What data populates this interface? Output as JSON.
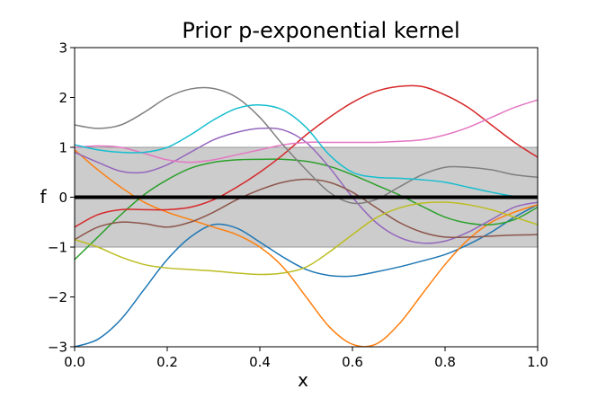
{
  "chart_data": {
    "type": "line",
    "title": "Prior p-exponential kernel",
    "xlabel": "x",
    "ylabel": "f",
    "xlim": [
      0.0,
      1.0
    ],
    "ylim": [
      -3,
      3
    ],
    "xticks": [
      0.0,
      0.2,
      0.4,
      0.6,
      0.8,
      1.0
    ],
    "xtick_labels": [
      "0.0",
      "0.2",
      "0.4",
      "0.6",
      "0.8",
      "1.0"
    ],
    "yticks": [
      -3,
      -2,
      -1,
      0,
      1,
      2,
      3
    ],
    "ytick_labels": [
      "−3",
      "−2",
      "−1",
      "0",
      "1",
      "2",
      "3"
    ],
    "band": {
      "lower": -1,
      "upper": 1,
      "color": "#cccccc"
    },
    "mean": {
      "x": [
        0.0,
        1.0
      ],
      "y": [
        0,
        0
      ],
      "color": "#000000"
    },
    "grid": false,
    "legend": "none",
    "series": [
      {
        "color": "#1f77b4",
        "x": [
          0.0,
          0.05,
          0.1,
          0.15,
          0.2,
          0.25,
          0.3,
          0.35,
          0.4,
          0.45,
          0.5,
          0.55,
          0.6,
          0.65,
          0.7,
          0.75,
          0.8,
          0.85,
          0.9,
          0.95,
          1.0
        ],
        "y": [
          -3.0,
          -2.85,
          -2.45,
          -1.85,
          -1.25,
          -0.8,
          -0.55,
          -0.62,
          -0.9,
          -1.2,
          -1.45,
          -1.57,
          -1.58,
          -1.5,
          -1.4,
          -1.28,
          -1.15,
          -0.95,
          -0.7,
          -0.4,
          -0.15
        ]
      },
      {
        "color": "#ff7f0e",
        "x": [
          0.0,
          0.05,
          0.1,
          0.15,
          0.2,
          0.25,
          0.3,
          0.35,
          0.4,
          0.45,
          0.5,
          0.55,
          0.6,
          0.65,
          0.7,
          0.75,
          0.8,
          0.85,
          0.9,
          0.95,
          1.0
        ],
        "y": [
          0.95,
          0.55,
          0.2,
          -0.1,
          -0.3,
          -0.45,
          -0.6,
          -0.75,
          -1.0,
          -1.4,
          -2.0,
          -2.6,
          -2.95,
          -2.95,
          -2.55,
          -1.95,
          -1.35,
          -0.85,
          -0.5,
          -0.3,
          -0.15
        ]
      },
      {
        "color": "#2ca02c",
        "x": [
          0.0,
          0.05,
          0.1,
          0.15,
          0.2,
          0.25,
          0.3,
          0.35,
          0.4,
          0.45,
          0.5,
          0.55,
          0.6,
          0.65,
          0.7,
          0.75,
          0.8,
          0.85,
          0.9,
          0.95,
          1.0
        ],
        "y": [
          -1.25,
          -0.8,
          -0.35,
          0.05,
          0.35,
          0.58,
          0.7,
          0.75,
          0.76,
          0.76,
          0.72,
          0.62,
          0.45,
          0.25,
          0.05,
          -0.18,
          -0.4,
          -0.52,
          -0.55,
          -0.45,
          -0.2
        ]
      },
      {
        "color": "#d62728",
        "x": [
          0.0,
          0.05,
          0.1,
          0.15,
          0.2,
          0.25,
          0.3,
          0.35,
          0.4,
          0.45,
          0.5,
          0.55,
          0.6,
          0.65,
          0.7,
          0.75,
          0.8,
          0.85,
          0.9,
          0.95,
          1.0
        ],
        "y": [
          -0.6,
          -0.35,
          -0.25,
          -0.25,
          -0.25,
          -0.2,
          -0.05,
          0.2,
          0.5,
          0.85,
          1.25,
          1.6,
          1.9,
          2.12,
          2.22,
          2.22,
          2.05,
          1.8,
          1.45,
          1.1,
          0.8
        ]
      },
      {
        "color": "#9467bd",
        "x": [
          0.0,
          0.05,
          0.1,
          0.15,
          0.2,
          0.25,
          0.3,
          0.35,
          0.4,
          0.45,
          0.5,
          0.55,
          0.6,
          0.65,
          0.7,
          0.75,
          0.8,
          0.85,
          0.9,
          0.95,
          1.0
        ],
        "y": [
          0.9,
          0.7,
          0.52,
          0.5,
          0.65,
          0.9,
          1.15,
          1.3,
          1.38,
          1.35,
          1.1,
          0.6,
          0.0,
          -0.5,
          -0.8,
          -0.92,
          -0.88,
          -0.7,
          -0.45,
          -0.2,
          -0.1
        ]
      },
      {
        "color": "#8c564b",
        "x": [
          0.0,
          0.05,
          0.1,
          0.15,
          0.2,
          0.25,
          0.3,
          0.35,
          0.4,
          0.45,
          0.5,
          0.55,
          0.6,
          0.65,
          0.7,
          0.75,
          0.8,
          0.85,
          0.9,
          0.95,
          1.0
        ],
        "y": [
          -0.85,
          -0.6,
          -0.5,
          -0.53,
          -0.6,
          -0.5,
          -0.3,
          -0.05,
          0.15,
          0.3,
          0.36,
          0.3,
          0.1,
          -0.2,
          -0.5,
          -0.7,
          -0.8,
          -0.8,
          -0.78,
          -0.76,
          -0.75
        ]
      },
      {
        "color": "#e377c2",
        "x": [
          0.0,
          0.05,
          0.1,
          0.15,
          0.2,
          0.25,
          0.3,
          0.35,
          0.4,
          0.45,
          0.5,
          0.55,
          0.6,
          0.65,
          0.7,
          0.75,
          0.8,
          0.85,
          0.9,
          0.95,
          1.0
        ],
        "y": [
          1.0,
          1.03,
          1.0,
          0.88,
          0.75,
          0.7,
          0.75,
          0.85,
          0.95,
          1.05,
          1.1,
          1.1,
          1.1,
          1.1,
          1.12,
          1.15,
          1.25,
          1.4,
          1.6,
          1.8,
          1.95
        ]
      },
      {
        "color": "#7f7f7f",
        "x": [
          0.0,
          0.05,
          0.1,
          0.15,
          0.2,
          0.25,
          0.3,
          0.35,
          0.4,
          0.45,
          0.5,
          0.55,
          0.6,
          0.65,
          0.7,
          0.75,
          0.8,
          0.85,
          0.9,
          0.95,
          1.0
        ],
        "y": [
          1.45,
          1.38,
          1.45,
          1.7,
          2.0,
          2.17,
          2.18,
          2.0,
          1.6,
          1.05,
          0.55,
          0.1,
          -0.12,
          -0.05,
          0.2,
          0.45,
          0.6,
          0.6,
          0.55,
          0.45,
          0.4
        ]
      },
      {
        "color": "#bcbd22",
        "x": [
          0.0,
          0.05,
          0.1,
          0.15,
          0.2,
          0.25,
          0.3,
          0.35,
          0.4,
          0.45,
          0.5,
          0.55,
          0.6,
          0.65,
          0.7,
          0.75,
          0.8,
          0.85,
          0.9,
          0.95,
          1.0
        ],
        "y": [
          -0.85,
          -1.0,
          -1.2,
          -1.35,
          -1.42,
          -1.45,
          -1.48,
          -1.52,
          -1.55,
          -1.52,
          -1.4,
          -1.1,
          -0.75,
          -0.42,
          -0.22,
          -0.12,
          -0.1,
          -0.15,
          -0.25,
          -0.4,
          -0.55
        ]
      },
      {
        "color": "#17becf",
        "x": [
          0.0,
          0.05,
          0.1,
          0.15,
          0.2,
          0.25,
          0.3,
          0.35,
          0.4,
          0.45,
          0.5,
          0.55,
          0.6,
          0.65,
          0.7,
          0.75,
          0.8,
          0.85,
          0.9,
          0.95,
          1.0
        ],
        "y": [
          1.05,
          0.95,
          0.9,
          0.9,
          1.0,
          1.25,
          1.55,
          1.78,
          1.85,
          1.75,
          1.4,
          0.85,
          0.5,
          0.4,
          0.38,
          0.35,
          0.3,
          0.2,
          0.1,
          0.02,
          0.0
        ]
      }
    ]
  }
}
